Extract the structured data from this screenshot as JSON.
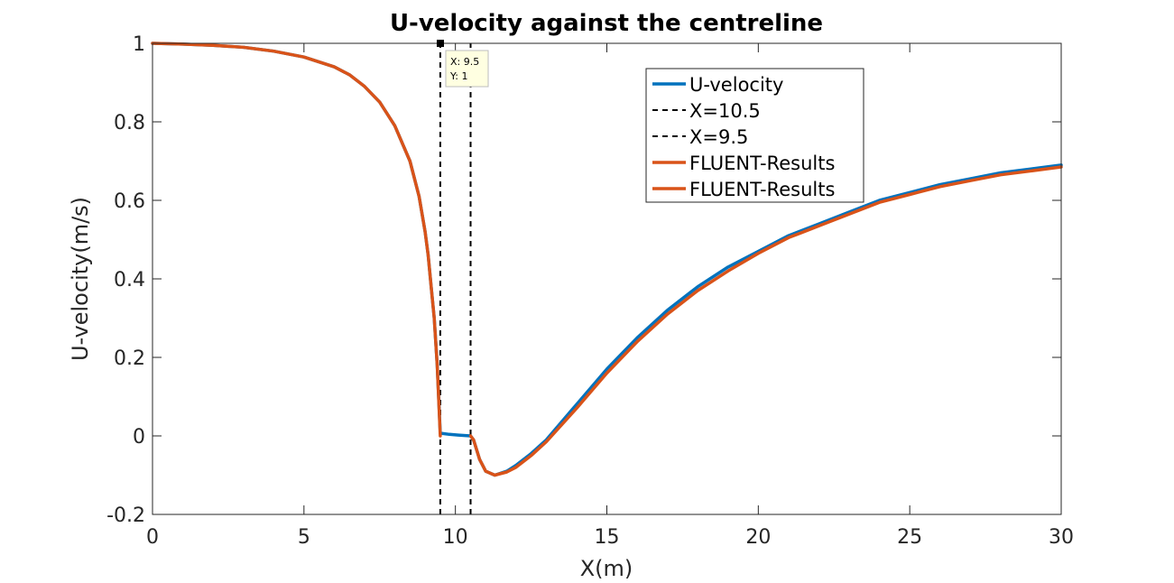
{
  "chart_data": {
    "type": "line",
    "title": "U-velocity against the centreline",
    "xlabel": "X(m)",
    "ylabel": "U-velocity(m/s)",
    "xlim": [
      0,
      30
    ],
    "ylim": [
      -0.2,
      1
    ],
    "xticks": [
      0,
      5,
      10,
      15,
      20,
      25,
      30
    ],
    "yticks": [
      -0.2,
      0,
      0.2,
      0.4,
      0.6,
      0.8,
      1
    ],
    "xtick_labels": [
      "0",
      "5",
      "10",
      "15",
      "20",
      "25",
      "30"
    ],
    "ytick_labels": [
      "-0.2",
      "0",
      "0.2",
      "0.4",
      "0.6",
      "0.8",
      "1"
    ],
    "grid": false,
    "legend_position": "top-right",
    "series": [
      {
        "name": "U-velocity",
        "color": "#0072BD",
        "style": "solid",
        "x": [
          0,
          1,
          2,
          3,
          4,
          5,
          6,
          6.5,
          7,
          7.5,
          8,
          8.5,
          8.8,
          9,
          9.1,
          9.2,
          9.3,
          9.4,
          9.5,
          9.8,
          10.1,
          10.5,
          10.6,
          10.8,
          11,
          11.3,
          11.7,
          12,
          12.5,
          13,
          14,
          15,
          16,
          17,
          18,
          19,
          20,
          21,
          22,
          23,
          24,
          25,
          26,
          27,
          28,
          29,
          30
        ],
        "y": [
          1.0,
          0.998,
          0.995,
          0.99,
          0.98,
          0.965,
          0.94,
          0.92,
          0.89,
          0.85,
          0.79,
          0.7,
          0.61,
          0.52,
          0.46,
          0.38,
          0.3,
          0.18,
          0.007,
          0.004,
          0.002,
          0.0,
          -0.01,
          -0.06,
          -0.09,
          -0.1,
          -0.09,
          -0.075,
          -0.045,
          -0.01,
          0.08,
          0.17,
          0.25,
          0.32,
          0.38,
          0.43,
          0.47,
          0.51,
          0.54,
          0.57,
          0.6,
          0.62,
          0.64,
          0.655,
          0.67,
          0.68,
          0.69
        ]
      },
      {
        "name": "X=10.5",
        "color": "#000000",
        "style": "dashed",
        "x": [
          10.5,
          10.5
        ],
        "y": [
          -0.2,
          1
        ]
      },
      {
        "name": "X=9.5",
        "color": "#000000",
        "style": "dashed",
        "x": [
          9.5,
          9.5
        ],
        "y": [
          -0.2,
          1
        ]
      },
      {
        "name": "FLUENT-Results",
        "color": "#D95319",
        "style": "solid",
        "x": [
          0,
          1,
          2,
          3,
          4,
          5,
          6,
          6.5,
          7,
          7.5,
          8,
          8.5,
          8.8,
          9,
          9.1,
          9.2,
          9.3,
          9.4,
          9.5
        ],
        "y": [
          1.0,
          0.998,
          0.995,
          0.99,
          0.98,
          0.965,
          0.94,
          0.92,
          0.89,
          0.85,
          0.79,
          0.7,
          0.61,
          0.52,
          0.46,
          0.38,
          0.3,
          0.18,
          0.0
        ]
      },
      {
        "name": "FLUENT-Results",
        "color": "#D95319",
        "style": "solid",
        "x": [
          10.5,
          10.6,
          10.8,
          11,
          11.3,
          11.7,
          12,
          12.5,
          13,
          14,
          15,
          16,
          17,
          18,
          19,
          20,
          21,
          22,
          23,
          24,
          25,
          26,
          27,
          28,
          29,
          30
        ],
        "y": [
          0.0,
          -0.01,
          -0.06,
          -0.09,
          -0.1,
          -0.092,
          -0.08,
          -0.05,
          -0.015,
          0.07,
          0.16,
          0.24,
          0.31,
          0.37,
          0.42,
          0.465,
          0.505,
          0.535,
          0.565,
          0.595,
          0.615,
          0.635,
          0.65,
          0.665,
          0.675,
          0.685
        ]
      }
    ],
    "datatip": {
      "x": 9.5,
      "y": 1,
      "x_text": "X: 9.5",
      "y_text": "Y: 1"
    }
  }
}
